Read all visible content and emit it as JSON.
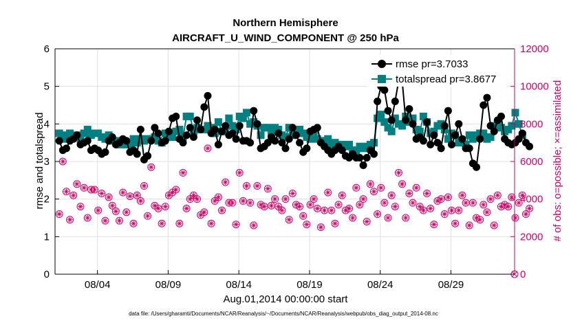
{
  "chart_data": {
    "type": "line",
    "title": "Northern Hemisphere",
    "subtitle": "AIRCRAFT_U_WIND_COMPONENT @ 250 hPa",
    "xlabel": "Aug.01,2014 00:00:00 start",
    "ylabel": "rmse and totalspread",
    "ylabel_right": "# of obs: o=possible; ×=assimilated",
    "footnote": "data file: /Users/gharamti/Documents/NCAR/Reanalysis/~/Documents/NCAR/Reanalysis/webpub/obs_diag_output_2014-08.nc",
    "x_range": [
      1,
      33.5
    ],
    "ylim": [
      0,
      6
    ],
    "ylim_right": [
      0,
      12000
    ],
    "y_ticks": [
      "0",
      "1",
      "2",
      "3",
      "4",
      "5",
      "6"
    ],
    "y_right_ticks": [
      "0",
      "2000",
      "4000",
      "6000",
      "8000",
      "10000",
      "12000"
    ],
    "x_ticks": [
      {
        "label": "08/04",
        "value": 4
      },
      {
        "label": "08/09",
        "value": 9
      },
      {
        "label": "08/14",
        "value": 14
      },
      {
        "label": "08/19",
        "value": 19
      },
      {
        "label": "08/24",
        "value": 24
      },
      {
        "label": "08/29",
        "value": 29
      }
    ],
    "x_start": 1.3,
    "x_step": 0.25,
    "series": [
      {
        "name": "rmse",
        "legend": "rmse pr=3.7033",
        "color": "#000000",
        "marker": "circle",
        "values": [
          3.55,
          3.3,
          3.35,
          3.55,
          3.6,
          3.7,
          3.45,
          3.5,
          3.55,
          3.3,
          3.35,
          3.3,
          3.2,
          3.25,
          3.55,
          3.65,
          3.45,
          3.5,
          3.6,
          3.55,
          3.25,
          3.3,
          3.2,
          3.85,
          3.05,
          3.15,
          3.55,
          3.9,
          3.75,
          3.5,
          3.55,
          3.8,
          4.15,
          4.2,
          3.6,
          3.5,
          3.7,
          3.9,
          3.65,
          4.1,
          3.85,
          4.45,
          4.75,
          3.75,
          3.85,
          3.45,
          3.8,
          3.95,
          3.7,
          3.75,
          3.6,
          3.95,
          3.55,
          3.55,
          3.5,
          4.35,
          4.0,
          3.35,
          3.4,
          3.5,
          3.65,
          3.55,
          3.75,
          3.5,
          3.35,
          3.6,
          3.9,
          3.7,
          3.5,
          3.25,
          3.35,
          3.8,
          3.85,
          3.9,
          3.5,
          3.4,
          3.3,
          3.2,
          3.3,
          3.4,
          3.3,
          3.15,
          3.1,
          3.2,
          3.1,
          3.1,
          2.9,
          3.1,
          3.3,
          3.2,
          4.6,
          5.0,
          4.9,
          4.35,
          4.1,
          4.6,
          5.15,
          5.15,
          4.1,
          4.4,
          4.0,
          3.6,
          3.65,
          3.55,
          4.05,
          3.45,
          3.7,
          3.5,
          3.35,
          3.95,
          4.35,
          3.45,
          3.7,
          4.0,
          3.6,
          3.35,
          3.35,
          2.95,
          2.85,
          3.6,
          4.5,
          4.7,
          3.95,
          3.8,
          4.1,
          4.2,
          3.6,
          3.5,
          3.45,
          3.5,
          3.6,
          3.75,
          3.5,
          3.4
        ]
      },
      {
        "name": "totalspread",
        "legend": "totalspread pr=3.8677",
        "color": "#008080",
        "marker": "square",
        "values": [
          3.75,
          3.7,
          3.6,
          3.75,
          3.65,
          3.7,
          3.6,
          3.75,
          3.85,
          3.7,
          3.75,
          3.75,
          3.65,
          3.6,
          3.7,
          3.55,
          3.55,
          3.45,
          3.55,
          3.45,
          3.45,
          3.6,
          3.5,
          3.6,
          3.55,
          3.6,
          3.6,
          3.65,
          3.55,
          3.5,
          3.75,
          3.65,
          3.65,
          3.8,
          3.85,
          3.65,
          4.2,
          4.2,
          3.8,
          3.9,
          3.85,
          3.85,
          3.95,
          3.9,
          3.75,
          4.05,
          3.8,
          3.8,
          4.15,
          3.95,
          3.85,
          4.2,
          4.15,
          4.3,
          4.0,
          4.05,
          3.95,
          3.7,
          3.9,
          3.9,
          3.75,
          3.9,
          3.85,
          3.7,
          3.65,
          3.9,
          3.7,
          3.85,
          3.85,
          3.75,
          3.65,
          3.6,
          3.8,
          3.6,
          3.55,
          3.55,
          3.6,
          3.45,
          3.5,
          3.4,
          3.45,
          3.4,
          3.45,
          3.3,
          3.3,
          3.4,
          3.35,
          3.4,
          3.45,
          3.5,
          4.15,
          4.25,
          4.05,
          3.9,
          3.8,
          4.15,
          4.0,
          3.95,
          4.2,
          4.05,
          4.15,
          3.85,
          3.8,
          4.2,
          4.05,
          3.75,
          3.8,
          3.95,
          4.0,
          3.85,
          3.6,
          3.75,
          3.7,
          3.5,
          3.55,
          3.45,
          3.7,
          3.6,
          3.7,
          3.75,
          3.75,
          3.6,
          3.65,
          3.95,
          4.0,
          3.9,
          3.8,
          3.85,
          3.95,
          4.3,
          4.0,
          3.7
        ]
      },
      {
        "name": "obs_possible",
        "legend": "",
        "color": "#cc0066",
        "marker": "circle-open",
        "axis": "right",
        "values": [
          3200,
          6000,
          4400,
          2900,
          4200,
          4800,
          3600,
          4600,
          3000,
          4500,
          4500,
          3400,
          4300,
          2850,
          4100,
          3650,
          3350,
          2850,
          4350,
          3300,
          4150,
          2700,
          4200,
          3900,
          4700,
          3100,
          5700,
          3650,
          3500,
          2700,
          3600,
          4200,
          4350,
          4500,
          2700,
          5400,
          3500,
          4000,
          4200,
          4000,
          3150,
          3300,
          6700,
          2700,
          3900,
          4100,
          3400,
          4900,
          3800,
          3800,
          2650,
          5400,
          3900,
          4700,
          3800,
          2600,
          4700,
          3700,
          3600,
          4550,
          3650,
          4000,
          3600,
          3400,
          4000,
          2900,
          4300,
          3700,
          3600,
          3100,
          2650,
          3700,
          4000,
          3500,
          2500,
          3400,
          4350,
          3400,
          2700,
          3700,
          4200,
          3400,
          3500,
          3000,
          4600,
          3700,
          4000,
          2800,
          4800,
          4400,
          3200,
          4600,
          3800,
          3000,
          4200,
          3600,
          5400,
          4800,
          3000,
          4300,
          3800,
          4600,
          3600,
          3400,
          4300,
          3500,
          2650,
          3900,
          4000,
          3200,
          4100,
          3400,
          2700,
          3400,
          4200,
          3800,
          2600,
          3800,
          3000,
          2900,
          3700,
          3300,
          4000,
          2600,
          4200,
          3600,
          3700,
          3600,
          4100,
          3000,
          3800,
          4200,
          3200,
          3500
        ]
      },
      {
        "name": "obs_assimilated",
        "legend": "",
        "color": "#cc0066",
        "marker": "asterisk",
        "axis": "right",
        "values": [
          3200,
          6000,
          4400,
          2900,
          4200,
          4800,
          3600,
          4600,
          3000,
          4500,
          4500,
          3400,
          4300,
          2850,
          4100,
          3650,
          3350,
          2850,
          4350,
          3300,
          4150,
          2700,
          4200,
          3900,
          4700,
          3100,
          5700,
          3650,
          3500,
          2700,
          3600,
          4200,
          4350,
          4500,
          2700,
          5400,
          3500,
          4000,
          4200,
          4000,
          3150,
          3300,
          6700,
          2700,
          3900,
          4100,
          3400,
          4900,
          3800,
          3800,
          2650,
          5400,
          3900,
          4700,
          3800,
          2600,
          4700,
          3700,
          3600,
          4550,
          3650,
          4000,
          3600,
          3400,
          4000,
          2900,
          4300,
          3700,
          3600,
          3100,
          2650,
          3700,
          4000,
          3500,
          2500,
          3400,
          4350,
          3400,
          2700,
          3700,
          4200,
          3400,
          3500,
          3000,
          4600,
          3700,
          4000,
          2800,
          4800,
          4400,
          3200,
          4600,
          3800,
          3000,
          4200,
          3600,
          5400,
          4800,
          3000,
          4300,
          3800,
          4600,
          3600,
          3400,
          4300,
          3500,
          2650,
          3900,
          4000,
          3200,
          4100,
          3400,
          2700,
          3400,
          4200,
          3800,
          2600,
          3800,
          3000,
          2900,
          3700,
          3300,
          4000,
          2600,
          4200,
          3600,
          3700,
          3600,
          4100,
          3000,
          3800,
          4200,
          3200,
          3500
        ]
      }
    ],
    "grid": true,
    "legend_position": "top-right",
    "right_axis_color": "#cc0066",
    "last_obs_value": 0
  }
}
